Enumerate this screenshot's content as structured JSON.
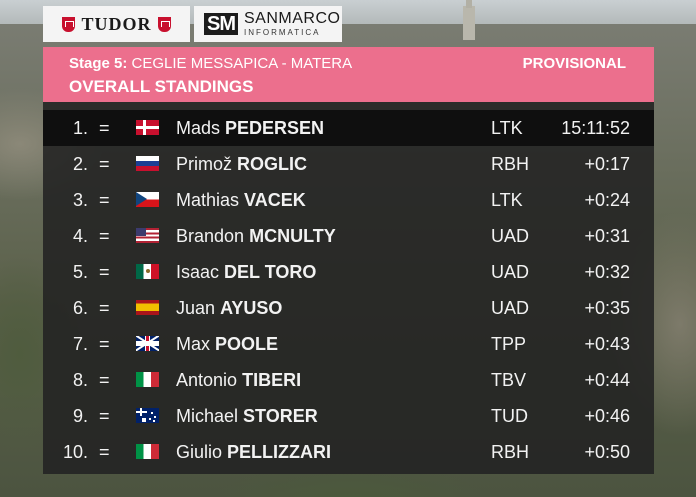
{
  "sponsors": {
    "tudor": "TUDOR",
    "sanmarco_mark": "SM",
    "sanmarco_name": "SANMARCO",
    "sanmarco_sub": "INFORMATICA"
  },
  "header": {
    "stage_label": "Stage 5:",
    "stage_route": "CEGLIE MESSAPICA - MATERA",
    "status": "PROVISIONAL",
    "title": "OVERALL STANDINGS"
  },
  "standings": [
    {
      "pos": "1.",
      "change": "=",
      "flag": "flag-denmark",
      "first": "Mads",
      "last": "PEDERSEN",
      "team": "LTK",
      "time": "15:11:52"
    },
    {
      "pos": "2.",
      "change": "=",
      "flag": "flag-slovenia",
      "first": "Primož",
      "last": "ROGLIC",
      "team": "RBH",
      "time": "+0:17"
    },
    {
      "pos": "3.",
      "change": "=",
      "flag": "flag-czechia",
      "first": "Mathias",
      "last": "VACEK",
      "team": "LTK",
      "time": "+0:24"
    },
    {
      "pos": "4.",
      "change": "=",
      "flag": "flag-usa",
      "first": "Brandon",
      "last": "MCNULTY",
      "team": "UAD",
      "time": "+0:31"
    },
    {
      "pos": "5.",
      "change": "=",
      "flag": "flag-mexico",
      "first": "Isaac",
      "last": "DEL TORO",
      "team": "UAD",
      "time": "+0:32"
    },
    {
      "pos": "6.",
      "change": "=",
      "flag": "flag-spain",
      "first": "Juan",
      "last": "AYUSO",
      "team": "UAD",
      "time": "+0:35"
    },
    {
      "pos": "7.",
      "change": "=",
      "flag": "flag-uk",
      "first": "Max",
      "last": "POOLE",
      "team": "TPP",
      "time": "+0:43"
    },
    {
      "pos": "8.",
      "change": "=",
      "flag": "flag-italy",
      "first": "Antonio",
      "last": "TIBERI",
      "team": "TBV",
      "time": "+0:44"
    },
    {
      "pos": "9.",
      "change": "=",
      "flag": "flag-australia",
      "first": "Michael",
      "last": "STORER",
      "team": "TUD",
      "time": "+0:46"
    },
    {
      "pos": "10.",
      "change": "=",
      "flag": "flag-italy",
      "first": "Giulio",
      "last": "PELLIZZARI",
      "team": "RBH",
      "time": "+0:50"
    }
  ],
  "colors": {
    "header_pink": "#ec6f8d",
    "panel": "#222222",
    "leader_row": "#0f0f0f"
  }
}
